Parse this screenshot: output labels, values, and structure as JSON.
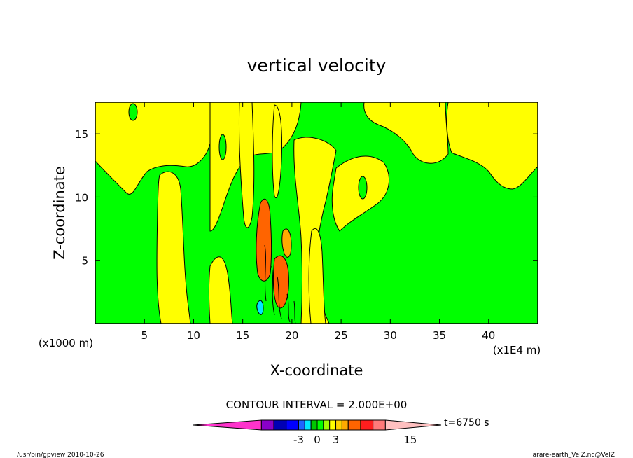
{
  "chart_data": {
    "type": "heatmap",
    "title": "vertical velocity",
    "xlabel": "X-coordinate",
    "ylabel": "Z-coordinate",
    "x_units_left": "(x1000 m)",
    "x_units_right": "(x1E4 m)",
    "xlim": [
      0,
      45
    ],
    "ylim": [
      0,
      17.5
    ],
    "x_ticks": [
      5,
      10,
      15,
      20,
      25,
      30,
      35,
      40
    ],
    "y_ticks": [
      5,
      10,
      15
    ],
    "contour_interval_text": "CONTOUR INTERVAL = 2.000E+00",
    "time_label": "t=6750 s",
    "colorbar": {
      "tick_labels": [
        {
          "label": "-3",
          "value": -3
        },
        {
          "label": "0",
          "value": 0
        },
        {
          "label": "3",
          "value": 3
        },
        {
          "label": "15",
          "value": 15
        }
      ],
      "bins": [
        {
          "from": -20,
          "to": -9,
          "color": "#ff33cc",
          "end": "left"
        },
        {
          "from": -9,
          "to": -7,
          "color": "#8a00c8"
        },
        {
          "from": -7,
          "to": -5,
          "color": "#0000b4"
        },
        {
          "from": -5,
          "to": -3,
          "color": "#0000ff"
        },
        {
          "from": -3,
          "to": -2,
          "color": "#1e64ff"
        },
        {
          "from": -2,
          "to": -1,
          "color": "#00e6ff"
        },
        {
          "from": -1,
          "to": 0,
          "color": "#00c800"
        },
        {
          "from": 0,
          "to": 1,
          "color": "#00ff00"
        },
        {
          "from": 1,
          "to": 2,
          "color": "#a0ff00"
        },
        {
          "from": 2,
          "to": 3,
          "color": "#ffff00"
        },
        {
          "from": 3,
          "to": 4,
          "color": "#ffd200"
        },
        {
          "from": 4,
          "to": 5,
          "color": "#ffaa00"
        },
        {
          "from": 5,
          "to": 7,
          "color": "#ff6400"
        },
        {
          "from": 7,
          "to": 9,
          "color": "#ff1e1e"
        },
        {
          "from": 9,
          "to": 11,
          "color": "#ff7a7a"
        },
        {
          "from": 11,
          "to": 20,
          "color": "#ffc0c0",
          "end": "right"
        }
      ]
    },
    "colors": {
      "background_field": "#00ff00",
      "positive_field": "#ffff00",
      "updraft_core": "#ff6400",
      "downdraft_core": "#00e6ff"
    }
  },
  "footer": {
    "left": "/usr/bin/gpview  2010-10-26",
    "right": "arare-earth_VelZ.nc@VelZ"
  }
}
